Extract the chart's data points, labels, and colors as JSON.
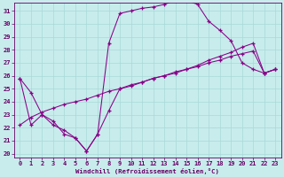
{
  "xlabel": "Windchill (Refroidissement éolien,°C)",
  "bg_color": "#c8ecec",
  "grid_color": "#a8d8d8",
  "line_color": "#880088",
  "tick_color": "#660066",
  "xlim_min": -0.5,
  "xlim_max": 23.5,
  "ylim_min": 19.7,
  "ylim_max": 31.6,
  "xticks": [
    0,
    1,
    2,
    3,
    4,
    5,
    6,
    7,
    8,
    9,
    10,
    11,
    12,
    13,
    14,
    15,
    16,
    17,
    18,
    19,
    20,
    21,
    22,
    23
  ],
  "yticks": [
    20,
    21,
    22,
    23,
    24,
    25,
    26,
    27,
    28,
    29,
    30,
    31
  ],
  "line1_x": [
    0,
    1,
    2,
    3,
    4,
    5,
    6,
    7,
    8,
    9,
    10,
    11,
    12,
    13,
    14,
    15,
    16,
    17,
    18,
    19,
    20,
    21,
    22,
    23
  ],
  "line1_y": [
    25.8,
    24.7,
    23.0,
    22.5,
    21.5,
    21.2,
    20.2,
    21.5,
    23.3,
    25.0,
    25.2,
    25.5,
    25.8,
    26.0,
    26.2,
    26.5,
    26.7,
    27.0,
    27.2,
    27.5,
    27.7,
    27.9,
    26.2,
    26.5
  ],
  "line2_x": [
    0,
    1,
    2,
    3,
    4,
    5,
    6,
    7,
    8,
    9,
    10,
    11,
    12,
    13,
    14,
    15,
    16,
    17,
    18,
    19,
    20,
    21,
    22,
    23
  ],
  "line2_y": [
    25.8,
    22.2,
    23.0,
    22.2,
    21.8,
    21.2,
    20.2,
    21.5,
    28.5,
    30.8,
    31.0,
    31.2,
    31.3,
    31.5,
    31.8,
    31.8,
    31.5,
    30.2,
    29.5,
    28.7,
    27.0,
    26.5,
    26.2,
    26.5
  ],
  "line3_x": [
    0,
    1,
    2,
    3,
    4,
    5,
    6,
    7,
    8,
    9,
    10,
    11,
    12,
    13,
    14,
    15,
    16,
    17,
    18,
    19,
    20,
    21,
    22,
    23
  ],
  "line3_y": [
    22.2,
    22.8,
    23.2,
    23.5,
    23.8,
    24.0,
    24.2,
    24.5,
    24.8,
    25.0,
    25.3,
    25.5,
    25.8,
    26.0,
    26.3,
    26.5,
    26.8,
    27.2,
    27.5,
    27.8,
    28.2,
    28.5,
    26.2,
    26.5
  ]
}
